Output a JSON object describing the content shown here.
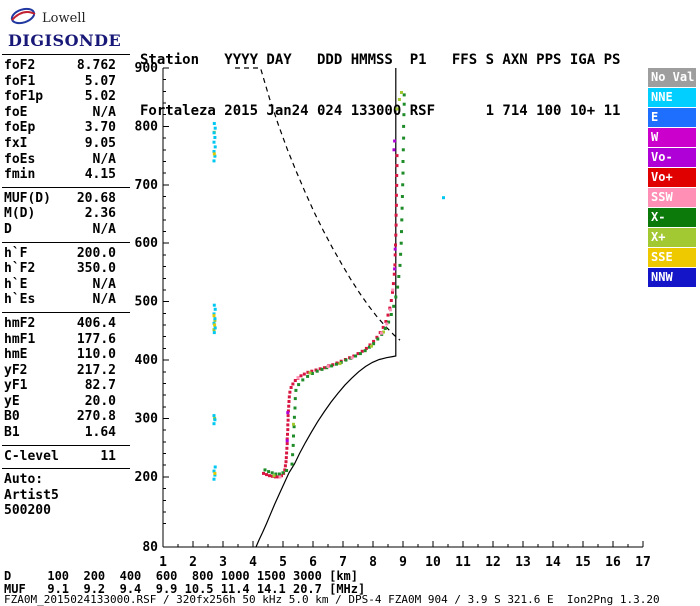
{
  "logo": {
    "company": "Lowell",
    "product": "DIGISONDE"
  },
  "header": {
    "line1": "Station   YYYY DAY   DDD HMMSS  P1   FFS S AXN PPS IGA PS",
    "line2": "Fortaleza 2015 Jan24 024 133000 RSF      1 714 100 10+ 11"
  },
  "params": {
    "groups": [
      {
        "divider": true,
        "rows": [
          {
            "label": "foF2",
            "value": "8.762"
          },
          {
            "label": "foF1",
            "value": "5.07"
          },
          {
            "label": "foF1p",
            "value": "5.02"
          },
          {
            "label": "foE",
            "value": "N/A"
          },
          {
            "label": "foEp",
            "value": "3.70"
          },
          {
            "label": "fxI",
            "value": "9.05"
          },
          {
            "label": "foEs",
            "value": "N/A"
          },
          {
            "label": "fmin",
            "value": "4.15"
          }
        ]
      },
      {
        "divider": true,
        "rows": [
          {
            "label": "MUF(D)",
            "value": "20.68"
          },
          {
            "label": "M(D)",
            "value": "2.36"
          },
          {
            "label": "D",
            "value": "N/A"
          }
        ]
      },
      {
        "divider": true,
        "rows": [
          {
            "label": "h`F",
            "value": "200.0"
          },
          {
            "label": "h`F2",
            "value": "350.0"
          },
          {
            "label": "h`E",
            "value": "N/A"
          },
          {
            "label": "h`Es",
            "value": "N/A"
          }
        ]
      },
      {
        "divider": true,
        "rows": [
          {
            "label": "hmF2",
            "value": "406.4"
          },
          {
            "label": "hmF1",
            "value": "177.6"
          },
          {
            "label": "hmE",
            "value": "110.0"
          },
          {
            "label": "yF2",
            "value": "217.2"
          },
          {
            "label": "yF1",
            "value": "82.7"
          },
          {
            "label": "yE",
            "value": "20.0"
          },
          {
            "label": "B0",
            "value": "270.8"
          },
          {
            "label": "B1",
            "value": "1.64"
          }
        ]
      },
      {
        "divider": true,
        "rows": [
          {
            "label": "C-level",
            "value": "11"
          }
        ]
      },
      {
        "divider": false,
        "rows": [
          {
            "label": "Auto:",
            "value": ""
          },
          {
            "label": "Artist5",
            "value": ""
          },
          {
            "label": "500200",
            "value": ""
          }
        ]
      }
    ]
  },
  "legend": {
    "items": [
      {
        "label": "No Val",
        "color": "#9e9e9e"
      },
      {
        "label": "NNE",
        "color": "#00cfff"
      },
      {
        "label": "E",
        "color": "#1f6fff"
      },
      {
        "label": "W",
        "color": "#cc00cc"
      },
      {
        "label": "Vo-",
        "color": "#b000d8"
      },
      {
        "label": "Vo+",
        "color": "#e00000"
      },
      {
        "label": "SSW",
        "color": "#ff8fb5"
      },
      {
        "label": "X-",
        "color": "#0b7a0b"
      },
      {
        "label": "X+",
        "color": "#a2c832"
      },
      {
        "label": "SSE",
        "color": "#eec900"
      },
      {
        "label": "NNW",
        "color": "#1414c8"
      }
    ]
  },
  "bottom": {
    "distance": {
      "label": "D",
      "unit": "[km]",
      "values": [
        "100",
        "200",
        "400",
        "600",
        "800",
        "1000",
        "1500",
        "3000"
      ]
    },
    "muf": {
      "label": "MUF",
      "unit": "[MHz]",
      "values": [
        "9.1",
        "9.2",
        "9.4",
        "9.9",
        "10.5",
        "11.4",
        "14.1",
        "20.7"
      ]
    }
  },
  "footer": {
    "status": "FZA0M_2015024133000.RSF / 320fx256h 50 kHz 5.0 km / DPS-4 FZA0M 904 / 3.9 S 321.6 E  Ion2Png 1.3.20"
  },
  "chart_data": {
    "type": "scatter",
    "title": "Fortaleza ionogram 2015 Jan24 024 133000",
    "x_unit": "MHz",
    "y_unit": "km",
    "x_range": [
      1,
      17
    ],
    "y_range": [
      80,
      900
    ],
    "x_ticks": [
      1,
      2,
      3,
      4,
      5,
      6,
      7,
      8,
      9,
      10,
      11,
      12,
      13,
      14,
      15,
      16,
      17
    ],
    "y_ticks": [
      900,
      800,
      700,
      600,
      500,
      400,
      300,
      200,
      80
    ],
    "grid": false,
    "legend_position": "right",
    "series": [
      {
        "name": "transmission-curve",
        "type": "dashed-line",
        "color": "#000000",
        "points": [
          [
            3.4,
            900
          ],
          [
            4.25,
            900
          ],
          [
            4.55,
            848
          ],
          [
            4.85,
            802
          ],
          [
            5.15,
            760
          ],
          [
            5.45,
            722
          ],
          [
            5.75,
            686
          ],
          [
            6.05,
            652
          ],
          [
            6.35,
            621
          ],
          [
            6.65,
            592
          ],
          [
            6.95,
            565
          ],
          [
            7.25,
            539
          ],
          [
            7.55,
            515
          ],
          [
            7.85,
            493
          ],
          [
            8.15,
            473
          ],
          [
            8.45,
            456
          ],
          [
            8.7,
            443
          ],
          [
            8.9,
            434
          ]
        ]
      },
      {
        "name": "true-height-profile",
        "type": "line",
        "color": "#000000",
        "points": [
          [
            4.1,
            80
          ],
          [
            4.2,
            92
          ],
          [
            4.32,
            105
          ],
          [
            4.45,
            120
          ],
          [
            4.58,
            136
          ],
          [
            4.72,
            153
          ],
          [
            4.88,
            171
          ],
          [
            5.04,
            189
          ],
          [
            5.2,
            207
          ],
          [
            5.38,
            222
          ],
          [
            5.56,
            241
          ],
          [
            5.75,
            259
          ],
          [
            5.95,
            277
          ],
          [
            6.16,
            295
          ],
          [
            6.38,
            312
          ],
          [
            6.6,
            328
          ],
          [
            6.83,
            343
          ],
          [
            7.06,
            357
          ],
          [
            7.29,
            369
          ],
          [
            7.52,
            380
          ],
          [
            7.75,
            389
          ],
          [
            7.98,
            396
          ],
          [
            8.21,
            401
          ],
          [
            8.45,
            404
          ],
          [
            8.65,
            406
          ],
          [
            8.76,
            407
          ],
          [
            8.76,
            900
          ]
        ]
      },
      {
        "name": "o-mode-trace",
        "type": "points",
        "color": "#d81440",
        "points": [
          [
            4.35,
            206
          ],
          [
            4.45,
            204
          ],
          [
            4.55,
            202
          ],
          [
            4.65,
            201
          ],
          [
            4.75,
            200
          ],
          [
            4.85,
            200
          ],
          [
            4.95,
            202
          ],
          [
            5.02,
            206
          ],
          [
            5.06,
            212
          ],
          [
            5.08,
            219
          ],
          [
            5.1,
            226
          ],
          [
            5.11,
            233
          ],
          [
            5.12,
            241
          ],
          [
            5.13,
            249
          ],
          [
            5.14,
            257
          ],
          [
            5.14,
            265
          ],
          [
            5.15,
            273
          ],
          [
            5.16,
            281
          ],
          [
            5.16,
            289
          ],
          [
            5.17,
            297
          ],
          [
            5.17,
            305
          ],
          [
            5.18,
            313
          ],
          [
            5.19,
            321
          ],
          [
            5.2,
            329
          ],
          [
            5.21,
            337
          ],
          [
            5.23,
            345
          ],
          [
            5.27,
            353
          ],
          [
            5.33,
            359
          ],
          [
            5.41,
            365
          ],
          [
            5.5,
            369
          ],
          [
            5.6,
            373
          ],
          [
            5.71,
            376
          ],
          [
            5.83,
            379
          ],
          [
            5.96,
            381
          ],
          [
            6.1,
            383
          ],
          [
            6.24,
            385
          ],
          [
            6.38,
            387
          ],
          [
            6.52,
            390
          ],
          [
            6.66,
            392
          ],
          [
            6.8,
            395
          ],
          [
            6.94,
            398
          ],
          [
            7.08,
            401
          ],
          [
            7.22,
            404
          ],
          [
            7.36,
            407
          ],
          [
            7.5,
            411
          ],
          [
            7.64,
            415
          ],
          [
            7.78,
            420
          ],
          [
            7.9,
            426
          ],
          [
            8.02,
            432
          ],
          [
            8.13,
            439
          ],
          [
            8.24,
            447
          ],
          [
            8.34,
            456
          ],
          [
            8.43,
            466
          ],
          [
            8.5,
            477
          ],
          [
            8.56,
            489
          ],
          [
            8.61,
            502
          ],
          [
            8.65,
            516
          ],
          [
            8.68,
            531
          ],
          [
            8.71,
            547
          ],
          [
            8.73,
            563
          ],
          [
            8.74,
            580
          ],
          [
            8.75,
            597
          ],
          [
            8.76,
            614
          ],
          [
            8.77,
            631
          ],
          [
            8.77,
            648
          ],
          [
            8.78,
            665
          ],
          [
            8.78,
            682
          ],
          [
            8.79,
            699
          ],
          [
            8.79,
            716
          ],
          [
            8.8,
            733
          ],
          [
            8.8,
            750
          ]
        ]
      },
      {
        "name": "x-mode-trace",
        "type": "points",
        "color": "#1e8c28",
        "points": [
          [
            4.4,
            212
          ],
          [
            4.52,
            209
          ],
          [
            4.64,
            207
          ],
          [
            4.76,
            205
          ],
          [
            4.88,
            205
          ],
          [
            5.0,
            207
          ],
          [
            5.12,
            211
          ],
          [
            5.3,
            222
          ],
          [
            5.32,
            238
          ],
          [
            5.34,
            254
          ],
          [
            5.35,
            270
          ],
          [
            5.37,
            286
          ],
          [
            5.38,
            302
          ],
          [
            5.4,
            318
          ],
          [
            5.41,
            334
          ],
          [
            5.43,
            348
          ],
          [
            5.52,
            358
          ],
          [
            5.66,
            366
          ],
          [
            5.82,
            372
          ],
          [
            5.98,
            377
          ],
          [
            6.14,
            381
          ],
          [
            6.3,
            384
          ],
          [
            6.46,
            387
          ],
          [
            6.62,
            390
          ],
          [
            6.78,
            393
          ],
          [
            6.94,
            396
          ],
          [
            7.1,
            400
          ],
          [
            7.26,
            403
          ],
          [
            7.42,
            407
          ],
          [
            7.58,
            411
          ],
          [
            7.74,
            416
          ],
          [
            7.88,
            422
          ],
          [
            8.02,
            428
          ],
          [
            8.16,
            436
          ],
          [
            8.29,
            444
          ],
          [
            8.41,
            454
          ],
          [
            8.52,
            465
          ],
          [
            8.61,
            478
          ],
          [
            8.69,
            492
          ],
          [
            8.76,
            508
          ],
          [
            8.82,
            525
          ],
          [
            8.86,
            543
          ],
          [
            8.9,
            562
          ],
          [
            8.92,
            581
          ],
          [
            8.94,
            600
          ],
          [
            8.95,
            620
          ],
          [
            8.96,
            640
          ],
          [
            8.97,
            660
          ],
          [
            8.98,
            680
          ],
          [
            8.99,
            700
          ],
          [
            9.0,
            720
          ],
          [
            9.0,
            740
          ],
          [
            9.01,
            760
          ],
          [
            9.02,
            780
          ],
          [
            9.02,
            800
          ],
          [
            9.03,
            820
          ],
          [
            9.04,
            838
          ],
          [
            9.04,
            854
          ]
        ]
      },
      {
        "name": "x-plus-accents",
        "type": "points",
        "color": "#a2c832",
        "points": [
          [
            8.88,
            846
          ],
          [
            8.95,
            858
          ],
          [
            8.8,
            830
          ],
          [
            8.35,
            448
          ],
          [
            7.95,
            424
          ],
          [
            6.9,
            394
          ],
          [
            5.9,
            378
          ],
          [
            5.35,
            290
          ],
          [
            4.7,
            202
          ],
          [
            2.72,
            300
          ],
          [
            2.7,
            452
          ],
          [
            2.73,
            468
          ],
          [
            2.71,
            790
          ]
        ]
      },
      {
        "name": "ssw-accents",
        "type": "points",
        "color": "#ff8fb5",
        "points": [
          [
            8.28,
            446
          ],
          [
            8.46,
            462
          ],
          [
            8.58,
            486
          ],
          [
            8.66,
            520
          ],
          [
            4.9,
            200
          ],
          [
            5.5,
            370
          ],
          [
            6.5,
            389
          ],
          [
            7.3,
            404
          ]
        ]
      },
      {
        "name": "vo-minus-accents",
        "type": "points",
        "color": "#b000d8",
        "points": [
          [
            8.72,
            556
          ],
          [
            8.74,
            590
          ],
          [
            8.7,
            760
          ],
          [
            8.72,
            775
          ],
          [
            5.14,
            262
          ],
          [
            5.16,
            310
          ]
        ]
      },
      {
        "name": "interference-nne",
        "type": "points",
        "color": "#00c8f0",
        "points": [
          [
            2.7,
            196
          ],
          [
            2.73,
            203
          ],
          [
            2.7,
            210
          ],
          [
            2.74,
            217
          ],
          [
            2.7,
            291
          ],
          [
            2.73,
            298
          ],
          [
            2.7,
            305
          ],
          [
            2.71,
            447
          ],
          [
            2.74,
            455
          ],
          [
            2.7,
            463
          ],
          [
            2.73,
            471
          ],
          [
            2.7,
            479
          ],
          [
            2.74,
            487
          ],
          [
            2.71,
            494
          ],
          [
            2.7,
            741
          ],
          [
            2.73,
            749
          ],
          [
            2.7,
            757
          ],
          [
            2.74,
            765
          ],
          [
            2.7,
            773
          ],
          [
            2.73,
            781
          ],
          [
            2.7,
            789
          ],
          [
            2.74,
            797
          ],
          [
            2.71,
            805
          ],
          [
            10.35,
            678
          ]
        ]
      },
      {
        "name": "interference-sse",
        "type": "points",
        "color": "#e6c800",
        "points": [
          [
            2.72,
            460
          ],
          [
            2.7,
            476
          ],
          [
            2.73,
            206
          ],
          [
            2.71,
            753
          ]
        ]
      }
    ]
  }
}
